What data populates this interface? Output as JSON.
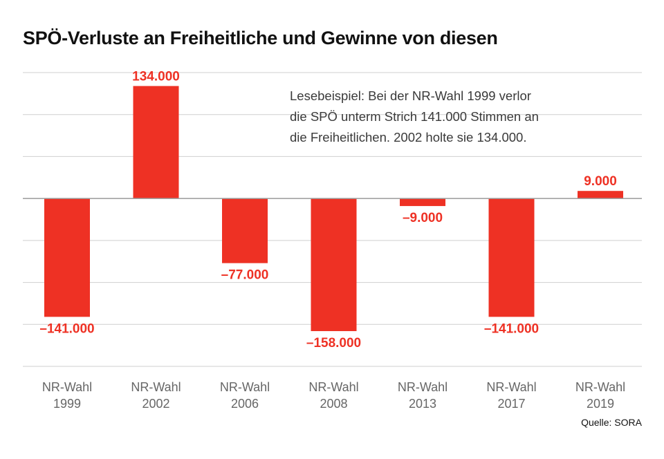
{
  "title": "SPÖ-Verluste an Freiheitliche und Gewinne von diesen",
  "annotation": {
    "lines": [
      "Lesebeispiel: Bei der NR-Wahl 1999 verlor",
      "die SPÖ unterm Strich 141.000 Stimmen an",
      "die Freiheitlichen. 2002 holte sie 134.000."
    ]
  },
  "source": "Quelle: SORA",
  "colors": {
    "bar": "#ee3124",
    "label": "#ee3124",
    "grid": "#cfcfcf",
    "zero_line": "#9a9a9a",
    "category_text": "#666666"
  },
  "chart_data": {
    "type": "bar",
    "title": "SPÖ-Verluste an Freiheitliche und Gewinne von diesen",
    "xlabel": "",
    "ylabel": "",
    "ylim": [
      -200000,
      150000
    ],
    "grid_step": 50000,
    "grid": true,
    "categories": [
      [
        "NR-Wahl",
        "1999"
      ],
      [
        "NR-Wahl",
        "2002"
      ],
      [
        "NR-Wahl",
        "2006"
      ],
      [
        "NR-Wahl",
        "2008"
      ],
      [
        "NR-Wahl",
        "2013"
      ],
      [
        "NR-Wahl",
        "2017"
      ],
      [
        "NR-Wahl",
        "2019"
      ]
    ],
    "values": [
      -141000,
      134000,
      -77000,
      -158000,
      -9000,
      -141000,
      9000
    ],
    "value_labels": [
      "–141.000",
      "134.000",
      "–77.000",
      "–158.000",
      "–9.000",
      "–141.000",
      "9.000"
    ]
  }
}
